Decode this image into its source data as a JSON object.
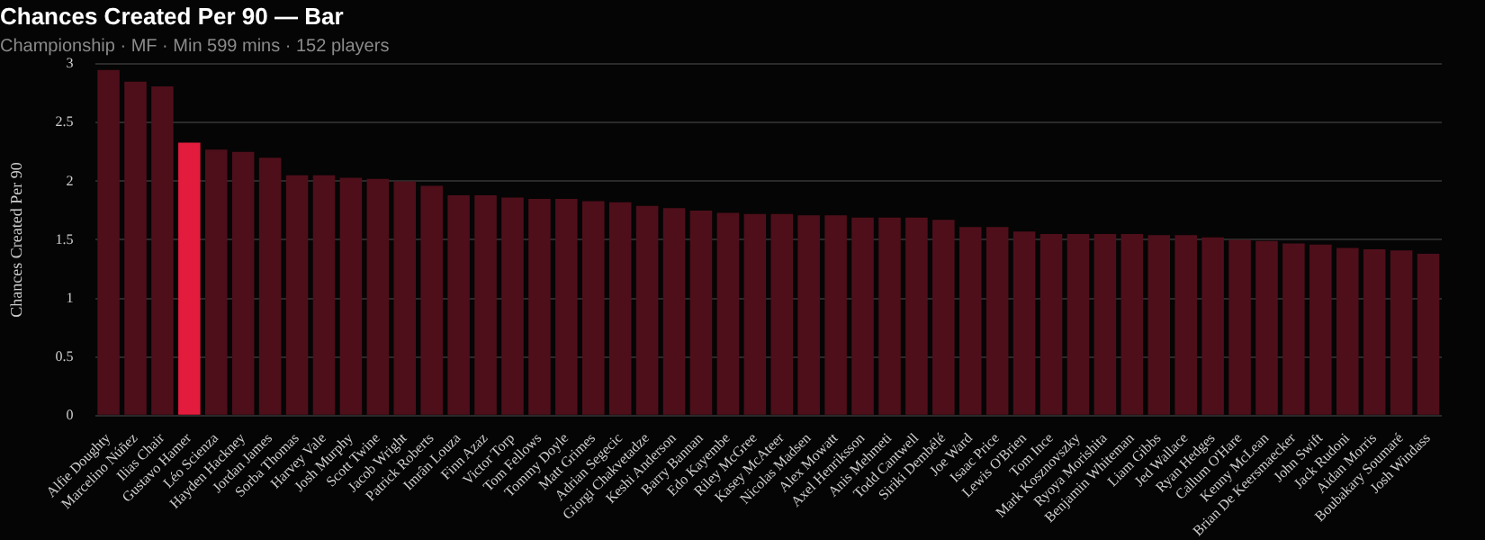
{
  "chart_data": {
    "type": "bar",
    "title": "Chances Created Per 90 — Bar",
    "subtitle": "Championship · MF · Min 599 mins · 152 players",
    "ylabel": "Chances Created Per 90",
    "categories": [
      "Alfie Doughty",
      "Marcelino Núñez",
      "Ilias Chair",
      "Gustavo Hamer",
      "Léo Scienza",
      "Hayden Hackney",
      "Jordan James",
      "Sorba Thomas",
      "Harvey Vale",
      "Josh Murphy",
      "Scott Twine",
      "Jacob Wright",
      "Patrick Roberts",
      "Imrân Louza",
      "Finn Azaz",
      "Victor Torp",
      "Tom Fellows",
      "Tommy Doyle",
      "Matt Grimes",
      "Adrian Segecic",
      "Giorgi Chakvetadze",
      "Keshi Anderson",
      "Barry Bannan",
      "Edo Kayembe",
      "Riley McGree",
      "Kasey McAteer",
      "Nicolas Madsen",
      "Alex Mowatt",
      "Axel Henriksson",
      "Anis Mehmeti",
      "Todd Cantwell",
      "Siriki Dembélé",
      "Joe Ward",
      "Isaac Price",
      "Lewis O'Brien",
      "Tom Ince",
      "Mark Kosznovszky",
      "Ryoya Morishita",
      "Benjamin Whiteman",
      "Liam Gibbs",
      "Jed Wallace",
      "Ryan Hedges",
      "Callum O'Hare",
      "Kenny McLean",
      "Brian De Keersmaecker",
      "John Swift",
      "Jack Rudoni",
      "Aidan Morris",
      "Boubakary Soumaré",
      "Josh Windass"
    ],
    "values": [
      2.95,
      2.85,
      2.81,
      2.33,
      2.27,
      2.25,
      2.2,
      2.05,
      2.05,
      2.03,
      2.02,
      2.0,
      1.96,
      1.88,
      1.88,
      1.86,
      1.85,
      1.85,
      1.83,
      1.82,
      1.79,
      1.77,
      1.75,
      1.73,
      1.72,
      1.72,
      1.71,
      1.71,
      1.69,
      1.69,
      1.69,
      1.67,
      1.61,
      1.61,
      1.57,
      1.55,
      1.55,
      1.55,
      1.55,
      1.54,
      1.54,
      1.52,
      1.5,
      1.49,
      1.47,
      1.46,
      1.43,
      1.42,
      1.41,
      1.38
    ],
    "colors": [
      "#4f0f1a",
      "#4f0f1a",
      "#4f0f1a",
      "#e31c3d",
      "#4f0f1a",
      "#4f0f1a",
      "#4f0f1a",
      "#4f0f1a",
      "#4f0f1a",
      "#4f0f1a",
      "#4f0f1a",
      "#4f0f1a",
      "#4f0f1a",
      "#4f0f1a",
      "#4f0f1a",
      "#4f0f1a",
      "#4f0f1a",
      "#4f0f1a",
      "#4f0f1a",
      "#4f0f1a",
      "#4f0f1a",
      "#4f0f1a",
      "#4f0f1a",
      "#4f0f1a",
      "#4f0f1a",
      "#4f0f1a",
      "#4f0f1a",
      "#4f0f1a",
      "#4f0f1a",
      "#4f0f1a",
      "#4f0f1a",
      "#4f0f1a",
      "#4f0f1a",
      "#4f0f1a",
      "#4f0f1a",
      "#4f0f1a",
      "#4f0f1a",
      "#4f0f1a",
      "#4f0f1a",
      "#4f0f1a",
      "#4f0f1a",
      "#4f0f1a",
      "#4f0f1a",
      "#4f0f1a",
      "#4f0f1a",
      "#4f0f1a",
      "#4f0f1a",
      "#4f0f1a",
      "#4f0f1a",
      "#4f0f1a"
    ],
    "ylim": [
      0,
      3
    ],
    "yticks": [
      0,
      0.5,
      1,
      1.5,
      2,
      2.5,
      3
    ],
    "grid": "y",
    "legend": false
  }
}
